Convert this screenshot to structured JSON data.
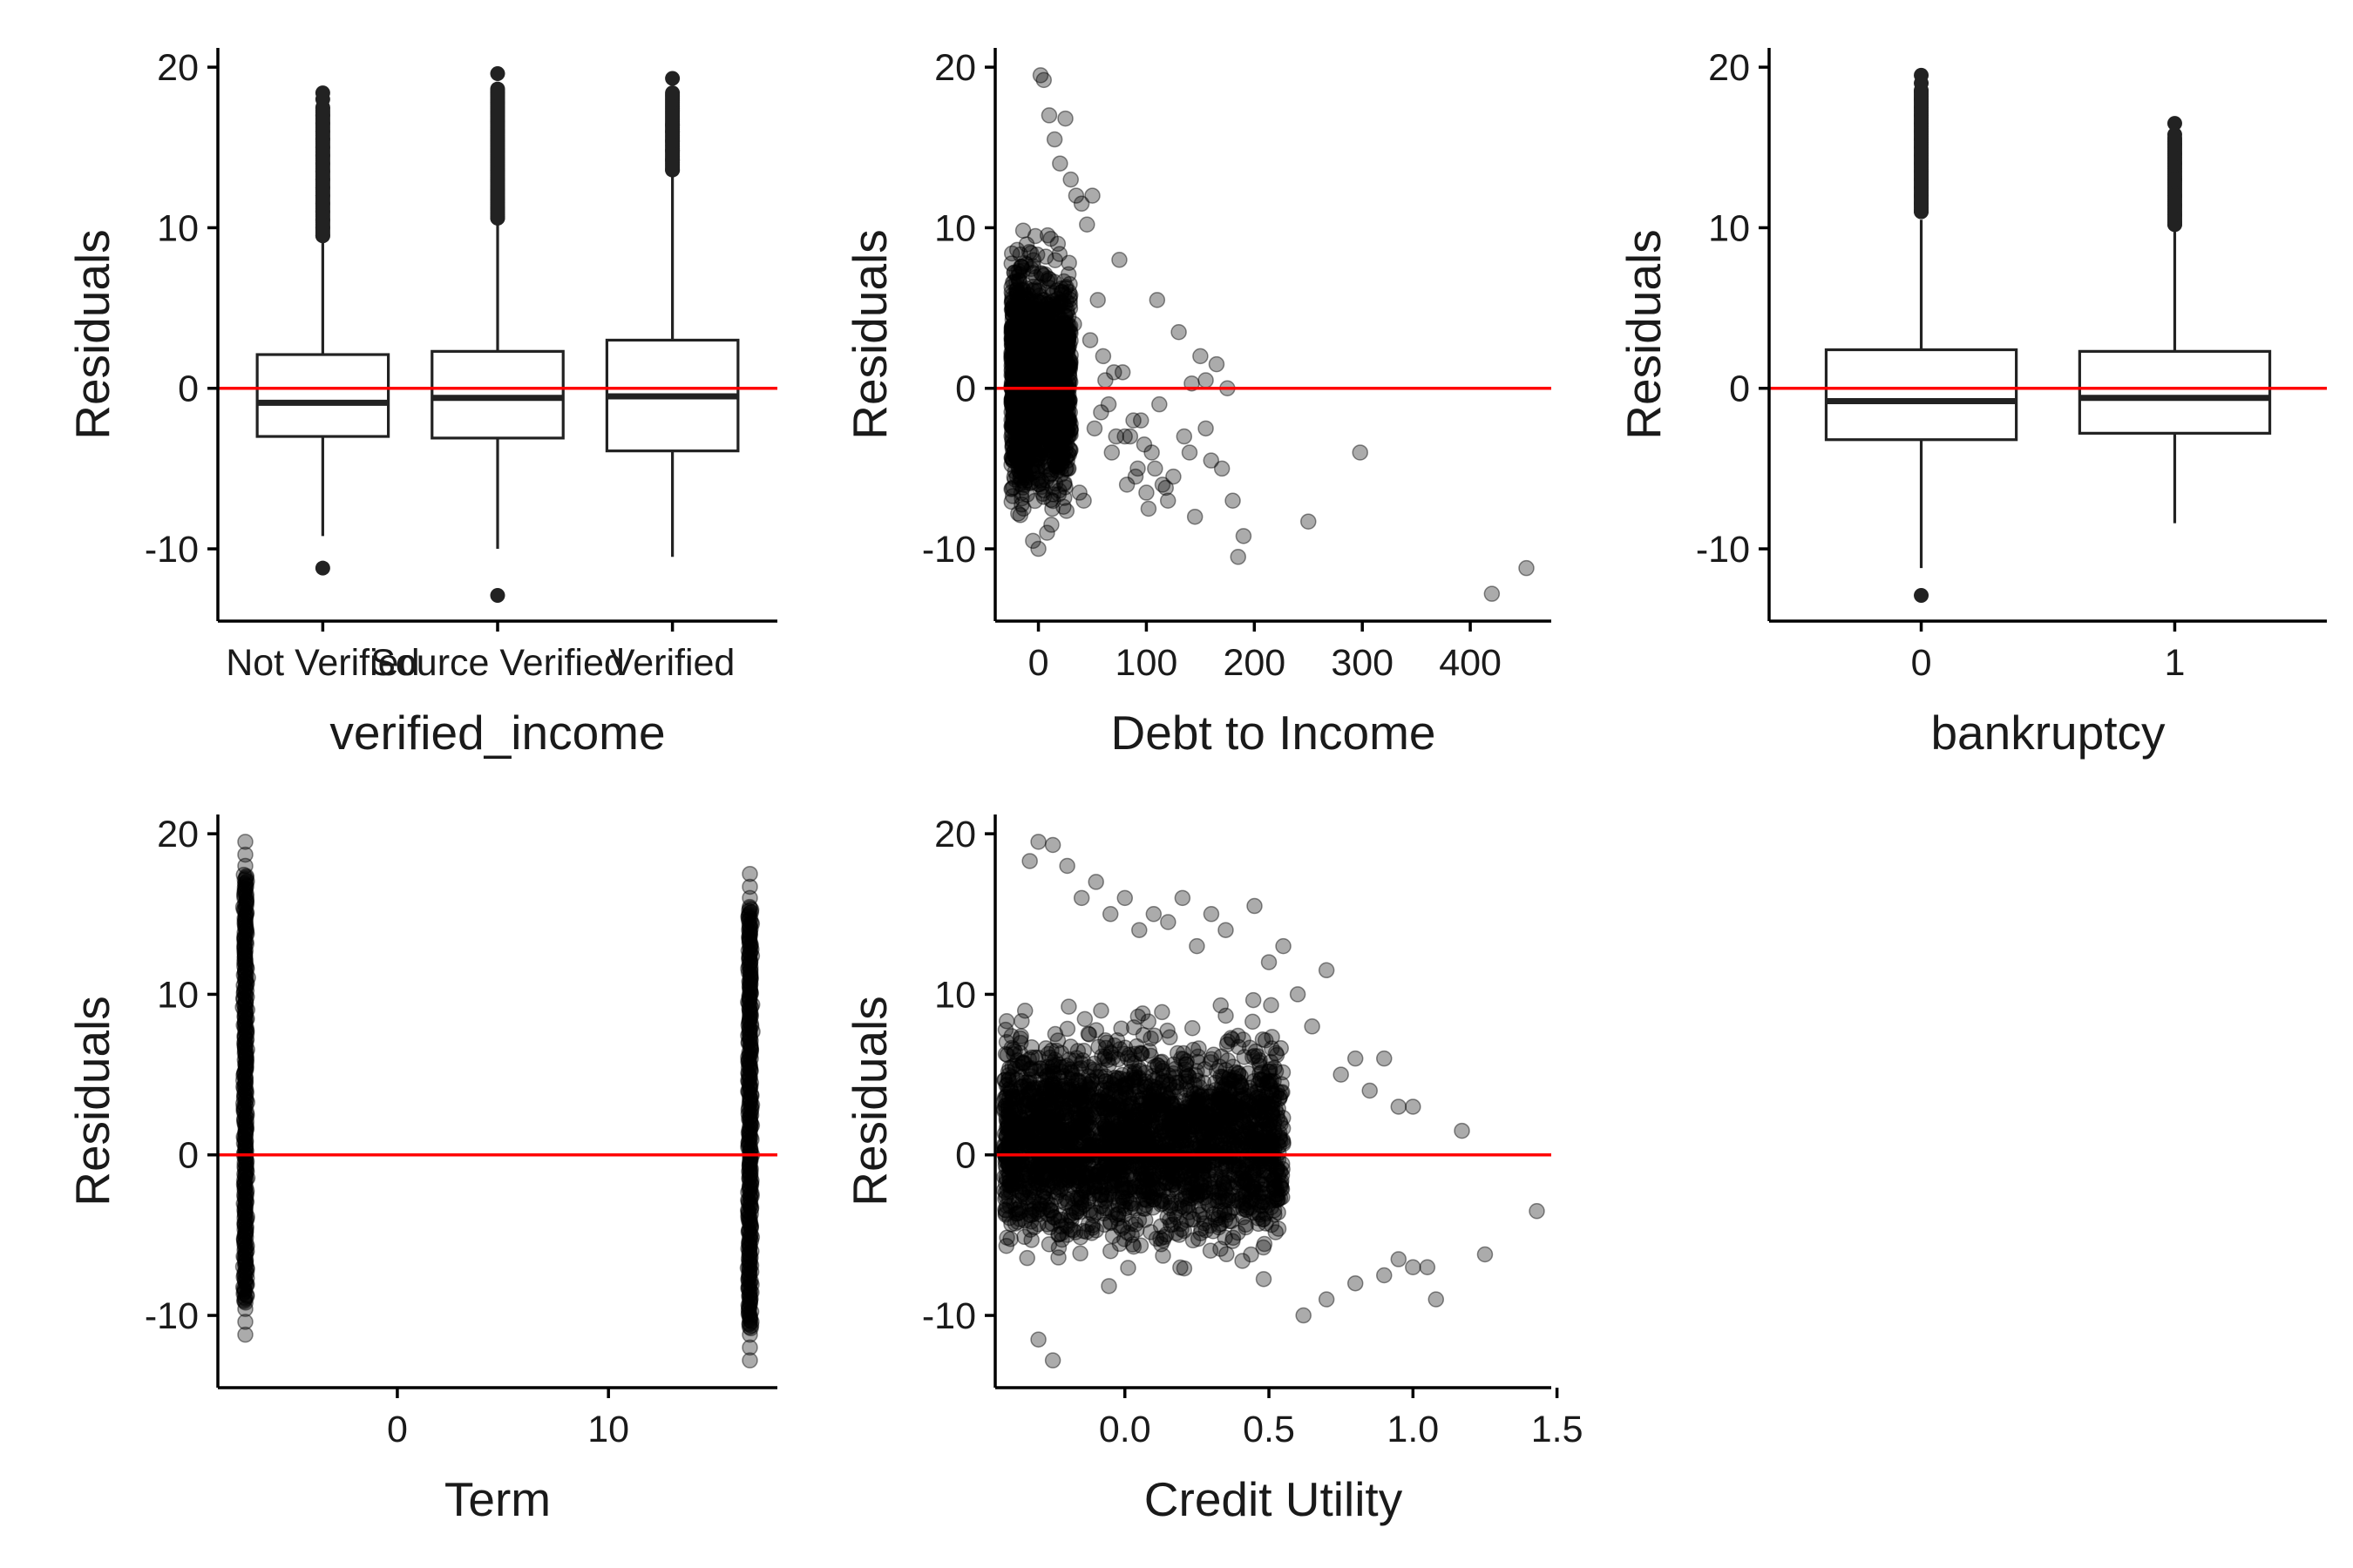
{
  "chart_data": [
    {
      "type": "boxplot",
      "xlabel": "verified_income",
      "ylabel": "Residuals",
      "categories": [
        "Not Verified",
        "Source Verified",
        "Verified"
      ],
      "ylim": [
        -14.5,
        21.2
      ],
      "yticks": [
        20,
        10,
        0,
        -10
      ],
      "ytick_labels": [
        "20",
        "10",
        "0",
        "-10"
      ],
      "hline": 0,
      "boxes": [
        {
          "q1": -3.0,
          "median": -0.9,
          "q3": 2.1,
          "whisker_low": -9.2,
          "whisker_high": 9.2,
          "outliers_high": [
            9.5,
            10,
            10.5,
            11,
            11.5,
            12,
            12.5,
            13,
            13.5,
            14,
            14.5,
            15,
            15.5,
            16,
            16.5,
            17,
            17.5,
            18,
            18.4
          ],
          "outliers_low": [
            -11.2
          ]
        },
        {
          "q1": -3.1,
          "median": -0.6,
          "q3": 2.3,
          "whisker_low": -10.0,
          "whisker_high": 10.3,
          "outliers_high": [
            10.6,
            11.2,
            11.8,
            12.4,
            13,
            13.6,
            14.2,
            14.8,
            15.4,
            16,
            16.6,
            17.2,
            17.8,
            18.4,
            19.6
          ],
          "outliers_low": [
            -12.9
          ]
        },
        {
          "q1": -3.9,
          "median": -0.5,
          "q3": 3.0,
          "whisker_low": -10.5,
          "whisker_high": 13.2,
          "outliers_high": [
            13.6,
            14.2,
            14.8,
            15.4,
            16,
            16.4,
            19.3
          ],
          "outliers_low": []
        }
      ]
    },
    {
      "type": "scatter",
      "xlabel": "Debt to Income",
      "ylabel": "Residuals",
      "xlim": [
        -40,
        475
      ],
      "ylim": [
        -14.5,
        21.2
      ],
      "xticks": [
        0,
        100,
        200,
        300,
        400
      ],
      "xtick_labels": [
        "0",
        "100",
        "200",
        "300",
        "400"
      ],
      "yticks": [
        20,
        10,
        0,
        -10
      ],
      "ytick_labels": [
        "20",
        "10",
        "0",
        "-10"
      ],
      "hline": 0,
      "x": [
        2,
        5,
        10,
        15,
        20,
        25,
        30,
        35,
        40,
        45,
        50,
        55,
        60,
        65,
        70,
        75,
        80,
        85,
        90,
        95,
        100,
        105,
        110,
        115,
        120,
        130,
        140,
        145,
        150,
        155,
        160,
        165,
        170,
        180,
        185,
        190,
        250,
        298,
        420,
        452,
        -5,
        0,
        8,
        12,
        18,
        22,
        28,
        33,
        38,
        42,
        48,
        52,
        58,
        62,
        68,
        72,
        78,
        82,
        88,
        92,
        98,
        102,
        108,
        112,
        118,
        125,
        135,
        142,
        155,
        175
      ],
      "y": [
        19.5,
        19.2,
        17,
        15.5,
        14,
        16.8,
        13,
        12,
        11.5,
        10.2,
        12,
        5.5,
        2,
        -1,
        1,
        8,
        -3,
        -3,
        -5.5,
        -2,
        -6.5,
        -4,
        5.5,
        -6,
        -7,
        3.5,
        -4,
        -8,
        2,
        0.5,
        -4.5,
        1.5,
        -5,
        -7,
        -10.5,
        -9.2,
        -8.3,
        -4,
        -12.8,
        -11.2,
        -9.5,
        -10,
        -9,
        -8.5,
        9,
        6,
        -5,
        4,
        -6.5,
        -7,
        3,
        -2.5,
        -1.5,
        0.5,
        -4,
        -3,
        1,
        -6,
        -2,
        -5,
        -3.5,
        -7.5,
        -5,
        -1,
        -6.2,
        -5.5,
        -3,
        0.3,
        -2.5,
        0
      ],
      "note_dense_band": {
        "x_range": [
          -25,
          30
        ],
        "y_range": [
          -9.5,
          17
        ]
      }
    },
    {
      "type": "boxplot",
      "xlabel": "bankruptcy",
      "ylabel": "Residuals",
      "categories": [
        "0",
        "1"
      ],
      "ylim": [
        -14.5,
        21.2
      ],
      "yticks": [
        20,
        10,
        0,
        -10
      ],
      "ytick_labels": [
        "20",
        "10",
        "0",
        "-10"
      ],
      "hline": 0,
      "boxes": [
        {
          "q1": -3.2,
          "median": -0.8,
          "q3": 2.4,
          "whisker_low": -11.2,
          "whisker_high": 10.5,
          "outliers_high": [
            11,
            11.5,
            12,
            12.5,
            13,
            13.5,
            14,
            14.5,
            15,
            15.5,
            16,
            16.5,
            17,
            17.5,
            18,
            18.5,
            19,
            19.5
          ],
          "outliers_low": [
            -12.9
          ]
        },
        {
          "q1": -2.8,
          "median": -0.6,
          "q3": 2.3,
          "whisker_low": -8.4,
          "whisker_high": 9.8,
          "outliers_high": [
            10.2,
            10.8,
            11.4,
            12,
            13,
            14,
            14.6,
            15.2,
            15.8,
            16.5
          ],
          "outliers_low": []
        }
      ]
    },
    {
      "type": "scatter",
      "xlabel": "Term",
      "ylabel": "Residuals",
      "xlim": [
        -8.5,
        18
      ],
      "ylim": [
        -14.5,
        21.2
      ],
      "xticks": [
        0,
        10
      ],
      "xtick_labels": [
        "0",
        "10"
      ],
      "yticks": [
        20,
        10,
        0,
        -10
      ],
      "ytick_labels": [
        "20",
        "10",
        "0",
        "-10"
      ],
      "hline": 0,
      "groups": [
        {
          "x": -7.2,
          "y_min": -11.2,
          "y_max": 19.5
        },
        {
          "x": 16.7,
          "y_min": -12.8,
          "y_max": 17.5
        }
      ]
    },
    {
      "type": "scatter",
      "xlabel": "Credit Utility",
      "ylabel": "Residuals",
      "xlim": [
        -0.45,
        1.48
      ],
      "ylim": [
        -14.5,
        21.2
      ],
      "xticks": [
        0.0,
        0.5,
        1.0,
        1.5
      ],
      "xtick_labels": [
        "0.0",
        "0.5",
        "1.0",
        "1.5"
      ],
      "yticks": [
        20,
        10,
        0,
        -10
      ],
      "ytick_labels": [
        "20",
        "10",
        "0",
        "-10"
      ],
      "hline": 0,
      "x": [
        -0.3,
        -0.25,
        -0.2,
        -0.33,
        -0.15,
        -0.1,
        -0.05,
        0.0,
        0.05,
        0.1,
        0.15,
        0.2,
        0.25,
        0.3,
        0.35,
        0.45,
        0.5,
        0.55,
        0.6,
        0.65,
        0.7,
        0.75,
        0.8,
        0.85,
        0.9,
        0.95,
        1.0,
        1.05,
        1.08,
        1.17,
        1.25,
        1.43,
        -0.25,
        -0.3,
        0.62,
        0.7,
        0.8,
        0.9,
        0.95,
        1.0
      ],
      "y": [
        19.5,
        19.3,
        18,
        18.3,
        16,
        17,
        15,
        16,
        14,
        15,
        14.5,
        16,
        13,
        15,
        14,
        15.5,
        12,
        13,
        10,
        8,
        11.5,
        5,
        6,
        4,
        6,
        3,
        3,
        -7,
        -9,
        1.5,
        -6.2,
        -3.5,
        -12.8,
        -11.5,
        -10,
        -9,
        -8,
        -7.5,
        -6.5,
        -7
      ],
      "note_dense_band": {
        "x_range": [
          -0.42,
          0.55
        ],
        "y_range": [
          -8.5,
          13
        ]
      }
    }
  ]
}
